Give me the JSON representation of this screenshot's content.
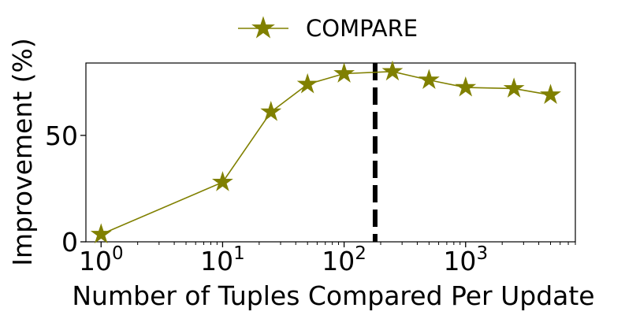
{
  "chart_data": {
    "type": "line",
    "title": "",
    "xlabel": "Number of Tuples Compared Per Update",
    "ylabel": "Improvement (%)",
    "xscale": "log",
    "xlim": [
      0.75,
      8000
    ],
    "ylim": [
      0,
      84
    ],
    "xticks": [
      {
        "value": 1,
        "base": "10",
        "exp": "0"
      },
      {
        "value": 10,
        "base": "10",
        "exp": "1"
      },
      {
        "value": 100,
        "base": "10",
        "exp": "2"
      },
      {
        "value": 1000,
        "base": "10",
        "exp": "3"
      }
    ],
    "yticks": [
      {
        "value": 0,
        "label": "0"
      },
      {
        "value": 50,
        "label": "50"
      }
    ],
    "grid": false,
    "legend_position": "top-center",
    "series": [
      {
        "name": "COMPARE",
        "color": "#808000",
        "marker": "star",
        "x": [
          1,
          10,
          25,
          50,
          100,
          250,
          500,
          1000,
          2500,
          5000
        ],
        "y": [
          3.5,
          28,
          61,
          74,
          79,
          80,
          76,
          72.5,
          72,
          69
        ]
      }
    ],
    "reference_lines": [
      {
        "axis": "x",
        "value": 180,
        "style": "dashed",
        "color": "#000000"
      }
    ]
  }
}
